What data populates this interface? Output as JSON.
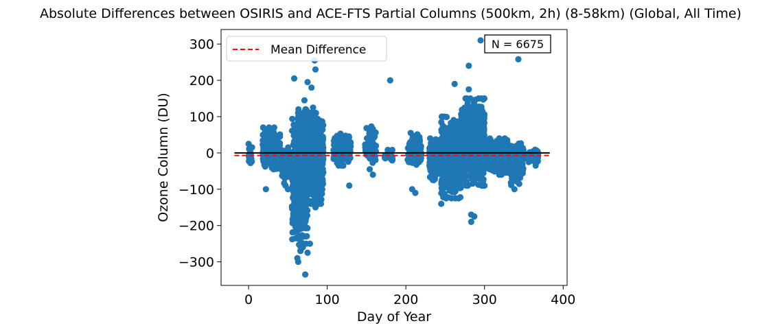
{
  "chart_data": {
    "type": "scatter",
    "title": "Absolute Differences between OSIRIS and ACE-FTS Partial Columns (500km, 2h) (8-58km) (Global, All Time)",
    "xlabel": "Day of Year",
    "ylabel": "Ozone Column (DU)",
    "xlim": [
      -35,
      405
    ],
    "ylim": [
      -365,
      340
    ],
    "xticks": [
      0,
      100,
      200,
      300,
      400
    ],
    "yticks": [
      -300,
      -200,
      -100,
      0,
      100,
      200,
      300
    ],
    "grid": false,
    "legend": {
      "position": "top-left",
      "entries": [
        "Mean Difference"
      ]
    },
    "annotation": {
      "text": "N = 6675",
      "position": "top-right"
    },
    "colors": {
      "points": "#1f77b4",
      "zero_line": "#000000",
      "mean_line": "#ff0000"
    },
    "zero_line": {
      "y": 0,
      "x_range": [
        -18,
        383
      ]
    },
    "mean_line": {
      "y": -7,
      "x_range": [
        -18,
        383
      ]
    },
    "clusters": [
      {
        "x": [
          0,
          5
        ],
        "y": [
          -30,
          28
        ],
        "n": 20
      },
      {
        "x": [
          18,
          40
        ],
        "y": [
          -45,
          70
        ],
        "n": 220
      },
      {
        "x": [
          42,
          55
        ],
        "y": [
          -85,
          15
        ],
        "n": 60
      },
      {
        "x": [
          55,
          68
        ],
        "y": [
          -270,
          110
        ],
        "n": 350
      },
      {
        "x": [
          63,
          75
        ],
        "y": [
          -230,
          120
        ],
        "n": 500
      },
      {
        "x": [
          68,
          95
        ],
        "y": [
          -140,
          110
        ],
        "n": 900
      },
      {
        "x": [
          108,
          130
        ],
        "y": [
          -35,
          60
        ],
        "n": 160
      },
      {
        "x": [
          148,
          162
        ],
        "y": [
          -45,
          90
        ],
        "n": 60
      },
      {
        "x": [
          172,
          183
        ],
        "y": [
          -25,
          10
        ],
        "n": 25
      },
      {
        "x": [
          202,
          220
        ],
        "y": [
          -40,
          55
        ],
        "n": 120
      },
      {
        "x": [
          230,
          250
        ],
        "y": [
          -75,
          40
        ],
        "n": 400
      },
      {
        "x": [
          245,
          270
        ],
        "y": [
          -125,
          100
        ],
        "n": 700
      },
      {
        "x": [
          270,
          300
        ],
        "y": [
          -90,
          150
        ],
        "n": 900
      },
      {
        "x": [
          300,
          330
        ],
        "y": [
          -60,
          40
        ],
        "n": 400
      },
      {
        "x": [
          333,
          350
        ],
        "y": [
          -90,
          35
        ],
        "n": 150
      },
      {
        "x": [
          356,
          368
        ],
        "y": [
          -35,
          15
        ],
        "n": 50
      }
    ],
    "outliers": [
      [
        0,
        25
      ],
      [
        22,
        -100
      ],
      [
        26,
        70
      ],
      [
        46,
        -70
      ],
      [
        47,
        -90
      ],
      [
        50,
        -100
      ],
      [
        58,
        205
      ],
      [
        62,
        -290
      ],
      [
        63,
        -300
      ],
      [
        66,
        -270
      ],
      [
        69,
        -260
      ],
      [
        71,
        145
      ],
      [
        72,
        -335
      ],
      [
        73,
        -250
      ],
      [
        75,
        195
      ],
      [
        75,
        -275
      ],
      [
        78,
        -250
      ],
      [
        80,
        180
      ],
      [
        82,
        125
      ],
      [
        84,
        255
      ],
      [
        85,
        230
      ],
      [
        85,
        -150
      ],
      [
        90,
        -130
      ],
      [
        92,
        -140
      ],
      [
        128,
        -90
      ],
      [
        154,
        -45
      ],
      [
        158,
        -60
      ],
      [
        180,
        200
      ],
      [
        208,
        -100
      ],
      [
        212,
        -110
      ],
      [
        245,
        -140
      ],
      [
        248,
        -120
      ],
      [
        258,
        -125
      ],
      [
        262,
        190
      ],
      [
        272,
        95
      ],
      [
        280,
        175
      ],
      [
        280,
        240
      ],
      [
        282,
        150
      ],
      [
        283,
        125
      ],
      [
        283,
        -170
      ],
      [
        283,
        -190
      ],
      [
        287,
        -175
      ],
      [
        292,
        115
      ],
      [
        295,
        310
      ],
      [
        343,
        258
      ],
      [
        338,
        -100
      ],
      [
        342,
        -80
      ]
    ]
  }
}
